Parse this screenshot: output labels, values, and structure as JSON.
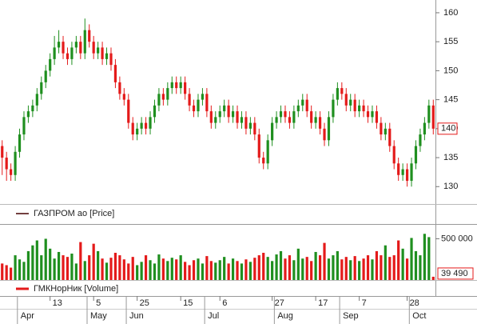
{
  "chart_data": [
    {
      "type": "candlestick",
      "legend": "ГАЗПРОМ ао [Price]",
      "categories": [
        null,
        null,
        null,
        null,
        null,
        null,
        null,
        null,
        null,
        null,
        null,
        "13",
        null,
        null,
        null,
        null,
        null,
        null,
        null,
        null,
        null,
        "5",
        null,
        null,
        null,
        null,
        null,
        null,
        null,
        null,
        null,
        "25",
        null,
        null,
        null,
        null,
        null,
        null,
        null,
        null,
        null,
        "15",
        null,
        null,
        null,
        null,
        null,
        null,
        null,
        null,
        "6",
        null,
        null,
        null,
        null,
        null,
        null,
        null,
        null,
        null,
        null,
        null,
        "27",
        null,
        null,
        null,
        null,
        null,
        null,
        null,
        null,
        null,
        "17",
        null,
        null,
        null,
        null,
        null,
        null,
        null,
        null,
        null,
        "7",
        null,
        null,
        null,
        null,
        null,
        null,
        null,
        null,
        null,
        null,
        "28",
        null,
        null,
        null,
        null,
        null,
        null
      ],
      "months": [
        null,
        null,
        null,
        null,
        "Apr",
        null,
        null,
        null,
        null,
        null,
        null,
        null,
        null,
        null,
        null,
        null,
        null,
        null,
        null,
        null,
        "May",
        null,
        null,
        null,
        null,
        null,
        null,
        null,
        null,
        "Jun",
        null,
        null,
        null,
        null,
        null,
        null,
        null,
        null,
        null,
        null,
        null,
        null,
        null,
        null,
        null,
        null,
        null,
        "Jul",
        null,
        null,
        null,
        null,
        null,
        null,
        null,
        null,
        null,
        null,
        null,
        null,
        null,
        null,
        null,
        "Aug",
        null,
        null,
        null,
        null,
        null,
        null,
        null,
        null,
        null,
        null,
        null,
        null,
        null,
        null,
        "Sep",
        null,
        null,
        null,
        null,
        null,
        null,
        null,
        null,
        null,
        null,
        null,
        null,
        null,
        null,
        null,
        "Oct",
        null,
        null,
        null,
        null,
        null
      ],
      "open": [
        137,
        135,
        133,
        132,
        136,
        139,
        142,
        143,
        144,
        146,
        148,
        150,
        152,
        154,
        155,
        153,
        152,
        154,
        155,
        153,
        157,
        155,
        153,
        154,
        152,
        153,
        151,
        148,
        146,
        145,
        141,
        139,
        140,
        141,
        140,
        142,
        144,
        146,
        145,
        147,
        148,
        147,
        148,
        146,
        144,
        143,
        145,
        146,
        143,
        141,
        142,
        143,
        144,
        142,
        143,
        141,
        142,
        140,
        141,
        139,
        135,
        134,
        138,
        141,
        142,
        143,
        142,
        141,
        143,
        144,
        145,
        143,
        141,
        142,
        140,
        138,
        142,
        145,
        147,
        146,
        144,
        145,
        143,
        144,
        143,
        142,
        143,
        141,
        139,
        140,
        137,
        134,
        132,
        133,
        131,
        134,
        137,
        139,
        141,
        144
      ],
      "high": [
        138,
        136,
        134,
        137,
        140,
        143,
        144,
        145,
        147,
        149,
        151,
        153,
        156,
        157,
        156,
        154,
        155,
        156,
        156,
        159,
        158,
        156,
        155,
        155,
        154,
        154,
        152,
        149,
        147,
        146,
        142,
        141,
        142,
        142,
        143,
        145,
        147,
        147,
        148,
        149,
        149,
        149,
        149,
        147,
        145,
        146,
        147,
        147,
        144,
        143,
        144,
        145,
        145,
        144,
        144,
        143,
        143,
        142,
        142,
        140,
        136,
        139,
        142,
        143,
        144,
        144,
        143,
        144,
        145,
        146,
        146,
        144,
        143,
        143,
        141,
        143,
        146,
        148,
        148,
        147,
        146,
        146,
        145,
        145,
        144,
        144,
        144,
        142,
        141,
        141,
        138,
        135,
        134,
        134,
        135,
        138,
        140,
        142,
        145,
        145
      ],
      "low": [
        132,
        131,
        131,
        131,
        135,
        138,
        141,
        142,
        143,
        145,
        147,
        149,
        151,
        153,
        152,
        151,
        151,
        153,
        152,
        152,
        154,
        152,
        152,
        151,
        151,
        150,
        147,
        145,
        144,
        140,
        138,
        138,
        139,
        139,
        139,
        141,
        143,
        144,
        144,
        146,
        146,
        146,
        145,
        143,
        142,
        142,
        144,
        142,
        140,
        140,
        141,
        142,
        141,
        141,
        140,
        140,
        139,
        139,
        138,
        134,
        133,
        133,
        137,
        140,
        141,
        141,
        140,
        140,
        142,
        143,
        142,
        140,
        140,
        139,
        137,
        137,
        141,
        144,
        145,
        143,
        143,
        142,
        142,
        142,
        141,
        141,
        140,
        138,
        138,
        136,
        133,
        131,
        131,
        130,
        130,
        133,
        136,
        138,
        140,
        139
      ],
      "close": [
        135,
        133,
        132,
        136,
        139,
        142,
        143,
        144,
        146,
        148,
        150,
        152,
        154,
        155,
        153,
        152,
        154,
        155,
        153,
        157,
        155,
        153,
        154,
        152,
        153,
        151,
        148,
        146,
        145,
        141,
        139,
        140,
        141,
        140,
        142,
        144,
        146,
        145,
        147,
        148,
        147,
        148,
        146,
        144,
        143,
        145,
        146,
        143,
        141,
        142,
        143,
        144,
        142,
        143,
        141,
        142,
        140,
        141,
        139,
        135,
        134,
        138,
        141,
        142,
        143,
        142,
        141,
        143,
        144,
        145,
        143,
        141,
        142,
        140,
        138,
        142,
        145,
        147,
        146,
        144,
        145,
        143,
        144,
        143,
        142,
        143,
        141,
        139,
        140,
        137,
        134,
        132,
        133,
        131,
        134,
        137,
        139,
        141,
        144,
        140
      ],
      "up_color": "#1f8f1f",
      "down_color": "#e41a1a",
      "ylim": [
        127,
        162.2
      ],
      "yticks": [
        130,
        135,
        140,
        145,
        150,
        155,
        160
      ]
    },
    {
      "type": "bar",
      "legend": "ГМКНорНик [Volume]",
      "values": [
        200000,
        180000,
        150000,
        300000,
        250000,
        220000,
        350000,
        420000,
        480000,
        300000,
        500000,
        380000,
        260000,
        340000,
        300000,
        280000,
        320000,
        200000,
        460000,
        230000,
        300000,
        440000,
        350000,
        260000,
        210000,
        270000,
        330000,
        300000,
        250000,
        200000,
        280000,
        180000,
        220000,
        300000,
        240000,
        200000,
        310000,
        260000,
        230000,
        270000,
        250000,
        300000,
        220000,
        180000,
        240000,
        260000,
        200000,
        290000,
        230000,
        210000,
        240000,
        280000,
        200000,
        260000,
        230000,
        200000,
        250000,
        220000,
        270000,
        300000,
        330000,
        280000,
        230000,
        310000,
        350000,
        260000,
        300000,
        240000,
        380000,
        260000,
        280000,
        230000,
        340000,
        300000,
        450000,
        260000,
        300000,
        350000,
        250000,
        280000,
        240000,
        290000,
        230000,
        260000,
        300000,
        250000,
        350000,
        300000,
        420000,
        280000,
        300000,
        480000,
        380000,
        260000,
        510000,
        350000,
        300000,
        560000,
        520000,
        39490
      ],
      "last_value_label": "39 490",
      "ylim": [
        0,
        650000
      ],
      "yticks": [
        {
          "value": 500000,
          "label": "500 000"
        }
      ]
    }
  ]
}
